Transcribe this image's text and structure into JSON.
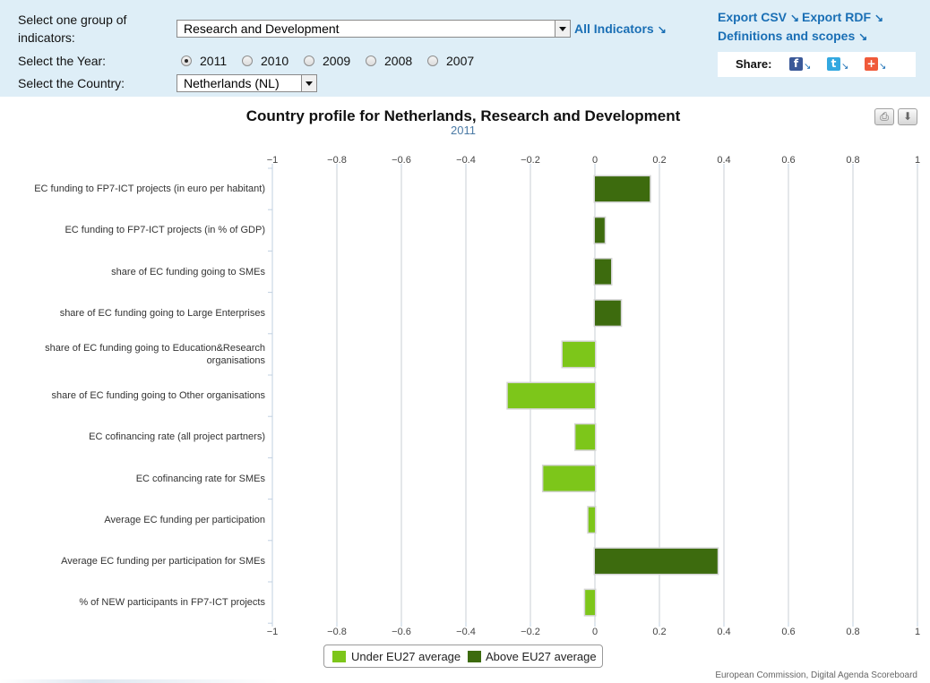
{
  "filters": {
    "group_label": "Select one group of indicators:",
    "group_selected": "Research and Development",
    "all_indicators": "All Indicators",
    "year_label": "Select the Year:",
    "years": [
      "2011",
      "2010",
      "2009",
      "2008",
      "2007"
    ],
    "year_selected": "2011",
    "country_label": "Select the Country:",
    "country_selected": "Netherlands (NL)"
  },
  "links": {
    "export_csv": "Export CSV",
    "export_rdf": "Export RDF",
    "definitions": "Definitions and scopes"
  },
  "share": {
    "label": "Share:",
    "icons": [
      "facebook-icon",
      "twitter-icon",
      "addthis-icon"
    ]
  },
  "toolbar": {
    "icons": [
      "print-icon",
      "download-icon"
    ]
  },
  "colors": {
    "under": "#7dc61a",
    "above": "#3d6b0e",
    "panel": "#deeef7",
    "link": "#1a6fb5"
  },
  "credits": "European Commission, Digital Agenda Scoreboard",
  "chart_data": {
    "type": "bar",
    "orientation": "horizontal",
    "title": "Country profile for Netherlands, Research and Development",
    "subtitle": "2011",
    "categories": [
      "EC funding to FP7-ICT projects (in euro per habitant)",
      "EC funding to FP7-ICT projects (in % of GDP)",
      "share of EC funding going to SMEs",
      "share of EC funding going to Large Enterprises",
      "share of EC funding going to Education&Research organisations",
      "share of EC funding going to Other organisations",
      "EC cofinancing rate (all project partners)",
      "EC cofinancing rate for SMEs",
      "Average EC funding per participation",
      "Average EC funding per participation for SMEs",
      "% of NEW participants in FP7-ICT projects"
    ],
    "category_label_lines": [
      [
        "EC funding to FP7-ICT projects (in euro per habitant)"
      ],
      [
        "EC funding to FP7-ICT projects (in % of GDP)"
      ],
      [
        "share of EC funding going to SMEs"
      ],
      [
        "share of EC funding going to Large Enterprises"
      ],
      [
        "share of EC funding going to Education&Research",
        "organisations"
      ],
      [
        "share of EC funding going to Other organisations"
      ],
      [
        "EC cofinancing rate (all project partners)"
      ],
      [
        "EC cofinancing rate for SMEs"
      ],
      [
        "Average EC funding per participation"
      ],
      [
        "Average EC funding per participation for SMEs"
      ],
      [
        "% of NEW participants in FP7-ICT projects"
      ]
    ],
    "values": [
      0.17,
      0.03,
      0.05,
      0.08,
      -0.1,
      -0.27,
      -0.06,
      -0.16,
      -0.02,
      0.38,
      -0.03
    ],
    "series": [
      {
        "name": "Under EU27 average",
        "color": "#7dc61a"
      },
      {
        "name": "Above EU27 average",
        "color": "#3d6b0e"
      }
    ],
    "xlim": [
      -1,
      1
    ],
    "ticks": [
      "−1",
      "−0.8",
      "−0.6",
      "−0.4",
      "−0.2",
      "0",
      "0.2",
      "0.4",
      "0.6",
      "0.8",
      "1"
    ],
    "tick_values": [
      -1,
      -0.8,
      -0.6,
      -0.4,
      -0.2,
      0,
      0.2,
      0.4,
      0.6,
      0.8,
      1
    ],
    "grid": true,
    "legend_position": "bottom-center"
  }
}
